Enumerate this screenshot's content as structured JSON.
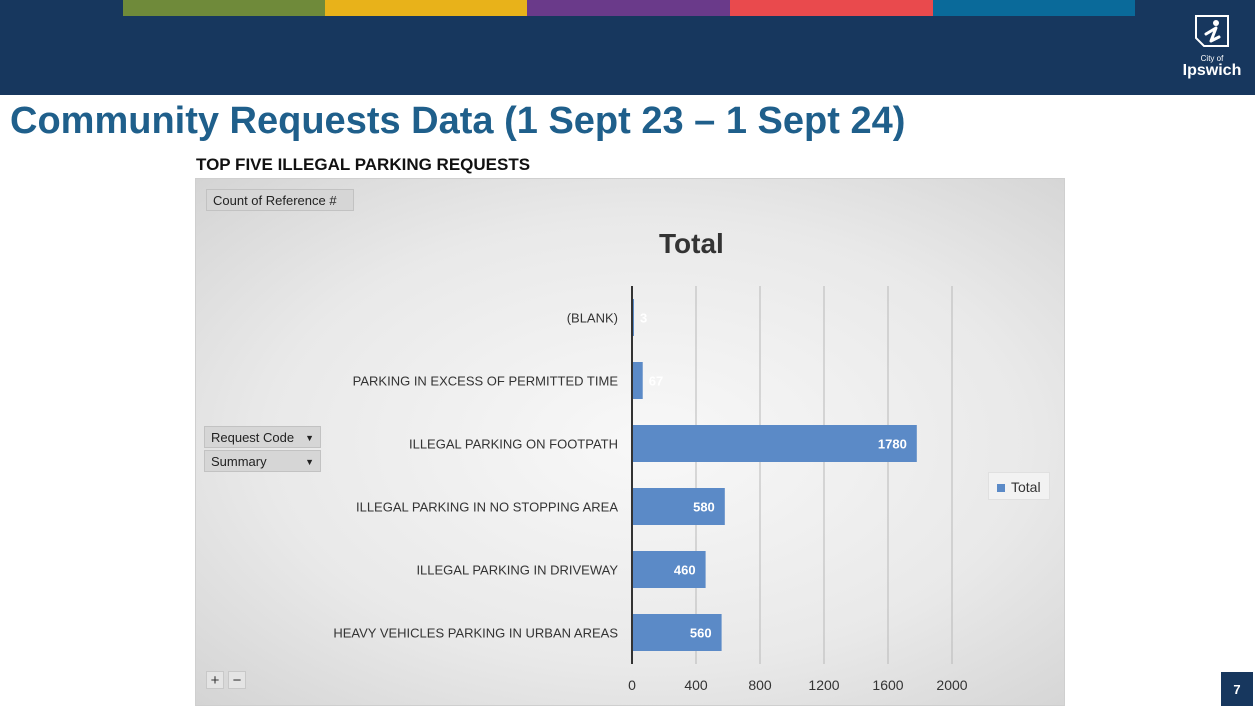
{
  "header": {
    "stripe_colors": [
      "#6f8a3a",
      "#e8b21a",
      "#6a3a8a",
      "#e94a4d",
      "#0a6a9a"
    ],
    "logo": {
      "small_text": "City of",
      "name": "Ipswich"
    }
  },
  "slide": {
    "title": "Community Requests Data (1 Sept 23 – 1 Sept 24)",
    "subtitle": "TOP FIVE ILLEGAL PARKING REQUESTS",
    "page_number": "7"
  },
  "pivot": {
    "value_field": "Count of Reference #",
    "row_fields": [
      "Request Code",
      "Summary"
    ],
    "zoom_in": "+",
    "zoom_out": "−"
  },
  "chart_data": {
    "type": "bar",
    "orientation": "horizontal",
    "title": "Total",
    "categories": [
      "(BLANK)",
      "PARKING IN EXCESS OF PERMITTED TIME",
      "ILLEGAL PARKING ON FOOTPATH",
      "ILLEGAL PARKING IN NO STOPPING AREA",
      "ILLEGAL PARKING IN DRIVEWAY",
      "HEAVY VEHICLES PARKING IN URBAN AREAS"
    ],
    "series": [
      {
        "name": "Total",
        "color": "#5b8ac7",
        "values": [
          3,
          67,
          1780,
          580,
          460,
          560
        ]
      }
    ],
    "data_labels": [
      "3",
      "67",
      "1780",
      "580",
      "460",
      "560"
    ],
    "x_ticks": [
      0,
      400,
      800,
      1200,
      1600,
      2000
    ],
    "xlim": [
      0,
      2000
    ],
    "grid": true,
    "legend_position": "right"
  }
}
